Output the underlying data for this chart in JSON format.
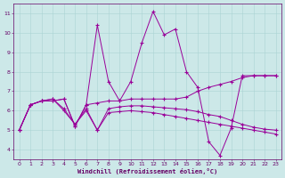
{
  "xlabel": "Windchill (Refroidissement éolien,°C)",
  "background_color": "#cce8e8",
  "line_color": "#990099",
  "xlim": [
    -0.5,
    23.5
  ],
  "ylim": [
    3.5,
    11.5
  ],
  "xticks": [
    0,
    1,
    2,
    3,
    4,
    5,
    6,
    7,
    8,
    9,
    10,
    11,
    12,
    13,
    14,
    15,
    16,
    17,
    18,
    19,
    20,
    21,
    22,
    23
  ],
  "yticks": [
    4,
    5,
    6,
    7,
    8,
    9,
    10,
    11
  ],
  "series": [
    {
      "x": [
        0,
        1,
        2,
        3,
        4,
        5,
        6,
        7,
        8,
        9,
        10,
        11,
        12,
        13,
        14,
        15,
        16,
        17,
        18,
        19,
        20,
        21,
        22,
        23
      ],
      "y": [
        5.0,
        6.3,
        6.5,
        6.5,
        6.6,
        5.2,
        6.3,
        10.4,
        7.5,
        6.5,
        7.5,
        9.5,
        11.1,
        9.9,
        10.2,
        8.0,
        7.2,
        4.4,
        3.7,
        5.1,
        7.8,
        7.8,
        7.8,
        7.8
      ]
    },
    {
      "x": [
        0,
        1,
        2,
        3,
        4,
        5,
        6,
        7,
        8,
        9,
        10,
        11,
        12,
        13,
        14,
        15,
        16,
        17,
        18,
        19,
        20,
        21,
        22,
        23
      ],
      "y": [
        5.0,
        6.3,
        6.5,
        6.5,
        6.6,
        5.2,
        6.3,
        6.4,
        6.5,
        6.5,
        6.6,
        6.6,
        6.6,
        6.6,
        6.6,
        6.7,
        7.0,
        7.2,
        7.35,
        7.5,
        7.7,
        7.8,
        7.8,
        7.8
      ]
    },
    {
      "x": [
        0,
        1,
        2,
        3,
        4,
        5,
        6,
        7,
        8,
        9,
        10,
        11,
        12,
        13,
        14,
        15,
        16,
        17,
        18,
        19,
        20,
        21,
        22,
        23
      ],
      "y": [
        5.0,
        6.3,
        6.5,
        6.6,
        6.1,
        5.3,
        6.1,
        5.0,
        6.1,
        6.2,
        6.25,
        6.25,
        6.2,
        6.15,
        6.1,
        6.05,
        5.95,
        5.8,
        5.7,
        5.5,
        5.3,
        5.15,
        5.05,
        5.0
      ]
    },
    {
      "x": [
        0,
        1,
        2,
        3,
        4,
        5,
        6,
        7,
        8,
        9,
        10,
        11,
        12,
        13,
        14,
        15,
        16,
        17,
        18,
        19,
        20,
        21,
        22,
        23
      ],
      "y": [
        5.0,
        6.3,
        6.5,
        6.6,
        6.0,
        5.3,
        6.0,
        5.0,
        5.9,
        5.95,
        6.0,
        5.95,
        5.9,
        5.8,
        5.7,
        5.6,
        5.5,
        5.4,
        5.3,
        5.2,
        5.1,
        5.0,
        4.9,
        4.8
      ]
    }
  ],
  "marker": "+",
  "marker_size": 3,
  "marker_lw": 0.8,
  "line_width": 0.7,
  "grid_color": "#aad4d4",
  "font_color": "#660066",
  "tick_fontsize": 4.5,
  "xlabel_fontsize": 5.0,
  "grid_linewidth": 0.4
}
